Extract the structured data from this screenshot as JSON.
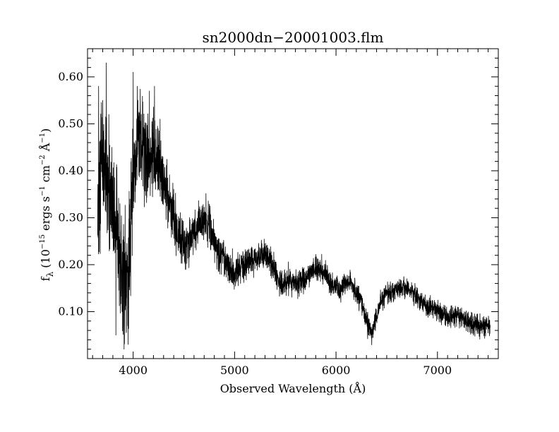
{
  "chart_data": {
    "type": "line",
    "title": "sn2000dn−20001003.flm",
    "xlabel": "Observed Wavelength (Å)",
    "ylabel": {
      "symbol": "f",
      "subscript": "λ",
      "open": " (10",
      "exp1": "−15",
      "mid1": " ergs s",
      "exp2": "−1",
      "mid2": " cm",
      "exp3": "−2",
      "mid3": " Å",
      "exp4": "−1",
      "close": ")"
    },
    "xlim": [
      3550,
      7600
    ],
    "ylim": [
      0.0,
      0.66
    ],
    "x_ticks": [
      {
        "value": 4000,
        "label": "4000"
      },
      {
        "value": 5000,
        "label": "5000"
      },
      {
        "value": 6000,
        "label": "6000"
      },
      {
        "value": 7000,
        "label": "7000"
      }
    ],
    "y_ticks": [
      {
        "value": 0.1,
        "label": "0.10"
      },
      {
        "value": 0.2,
        "label": "0.20"
      },
      {
        "value": 0.3,
        "label": "0.30"
      },
      {
        "value": 0.4,
        "label": "0.40"
      },
      {
        "value": 0.5,
        "label": "0.50"
      },
      {
        "value": 0.6,
        "label": "0.60"
      }
    ],
    "series": [
      {
        "color": "#000000",
        "wavelength_range": [
          3650,
          7520
        ],
        "continuum": [
          [
            3650,
            0.33
          ],
          [
            3700,
            0.42
          ],
          [
            3750,
            0.38
          ],
          [
            3800,
            0.31
          ],
          [
            3850,
            0.24
          ],
          [
            3900,
            0.18
          ],
          [
            3950,
            0.17
          ],
          [
            4000,
            0.4
          ],
          [
            4050,
            0.47
          ],
          [
            4100,
            0.46
          ],
          [
            4150,
            0.42
          ],
          [
            4200,
            0.44
          ],
          [
            4250,
            0.41
          ],
          [
            4300,
            0.37
          ],
          [
            4350,
            0.34
          ],
          [
            4400,
            0.3
          ],
          [
            4450,
            0.26
          ],
          [
            4500,
            0.24
          ],
          [
            4550,
            0.25
          ],
          [
            4600,
            0.27
          ],
          [
            4650,
            0.29
          ],
          [
            4700,
            0.29
          ],
          [
            4750,
            0.28
          ],
          [
            4800,
            0.25
          ],
          [
            4850,
            0.23
          ],
          [
            4900,
            0.21
          ],
          [
            4950,
            0.19
          ],
          [
            5000,
            0.18
          ],
          [
            5050,
            0.19
          ],
          [
            5100,
            0.2
          ],
          [
            5150,
            0.21
          ],
          [
            5200,
            0.21
          ],
          [
            5250,
            0.22
          ],
          [
            5300,
            0.23
          ],
          [
            5350,
            0.21
          ],
          [
            5400,
            0.18
          ],
          [
            5450,
            0.16
          ],
          [
            5500,
            0.16
          ],
          [
            5550,
            0.17
          ],
          [
            5600,
            0.16
          ],
          [
            5650,
            0.16
          ],
          [
            5700,
            0.17
          ],
          [
            5750,
            0.18
          ],
          [
            5800,
            0.19
          ],
          [
            5850,
            0.19
          ],
          [
            5900,
            0.18
          ],
          [
            5950,
            0.16
          ],
          [
            6000,
            0.15
          ],
          [
            6050,
            0.15
          ],
          [
            6100,
            0.16
          ],
          [
            6150,
            0.16
          ],
          [
            6200,
            0.14
          ],
          [
            6250,
            0.12
          ],
          [
            6300,
            0.08
          ],
          [
            6350,
            0.05
          ],
          [
            6400,
            0.09
          ],
          [
            6450,
            0.13
          ],
          [
            6500,
            0.14
          ],
          [
            6550,
            0.14
          ],
          [
            6600,
            0.15
          ],
          [
            6650,
            0.15
          ],
          [
            6700,
            0.15
          ],
          [
            6750,
            0.14
          ],
          [
            6800,
            0.13
          ],
          [
            6850,
            0.12
          ],
          [
            6900,
            0.11
          ],
          [
            6950,
            0.11
          ],
          [
            7000,
            0.1
          ],
          [
            7100,
            0.09
          ],
          [
            7200,
            0.09
          ],
          [
            7300,
            0.08
          ],
          [
            7400,
            0.07
          ],
          [
            7520,
            0.07
          ]
        ],
        "noise": [
          [
            3650,
            0.09
          ],
          [
            3800,
            0.08
          ],
          [
            3950,
            0.09
          ],
          [
            4050,
            0.07
          ],
          [
            4300,
            0.05
          ],
          [
            4500,
            0.035
          ],
          [
            5000,
            0.025
          ],
          [
            5500,
            0.02
          ],
          [
            6000,
            0.017
          ],
          [
            6500,
            0.015
          ],
          [
            7000,
            0.015
          ],
          [
            7520,
            0.017
          ]
        ],
        "spikes": [
          [
            3660,
            0.58
          ],
          [
            3700,
            0.55
          ],
          [
            3735,
            0.63
          ],
          [
            3760,
            0.52
          ],
          [
            3790,
            0.45
          ],
          [
            3830,
            0.05
          ],
          [
            3870,
            0.33
          ],
          [
            3910,
            0.02
          ],
          [
            3950,
            0.03
          ],
          [
            4000,
            0.61
          ],
          [
            4040,
            0.58
          ],
          [
            4080,
            0.52
          ],
          [
            4160,
            0.57
          ],
          [
            4210,
            0.58
          ],
          [
            4265,
            0.51
          ]
        ],
        "step": 1.2
      }
    ]
  }
}
